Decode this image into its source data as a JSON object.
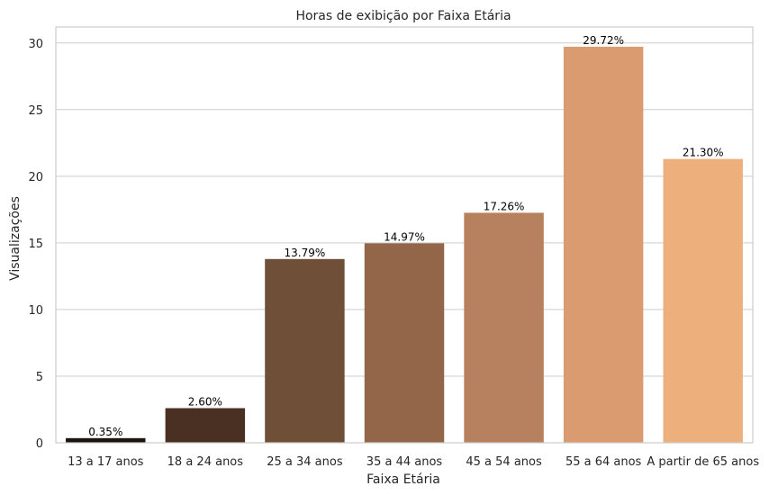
{
  "chart_data": {
    "type": "bar",
    "title": "Horas de exibição por Faixa Etária",
    "xlabel": "Faixa Etária",
    "ylabel": "Visualizações",
    "categories": [
      "13 a 17 anos",
      "18 a 24 anos",
      "25 a 34 anos",
      "35 a 44 anos",
      "45 a 54 anos",
      "55 a 64 anos",
      "A partir de 65 anos"
    ],
    "values": [
      0.35,
      2.6,
      13.79,
      14.97,
      17.26,
      29.72,
      21.3
    ],
    "data_labels": [
      "0.35%",
      "2.60%",
      "13.79%",
      "14.97%",
      "17.26%",
      "29.72%",
      "21.30%"
    ],
    "colors": [
      "#1e140f",
      "#4a3022",
      "#704f39",
      "#936649",
      "#b7805e",
      "#db9b71",
      "#edb07d"
    ],
    "yticks": [
      0,
      5,
      10,
      15,
      20,
      25,
      30
    ],
    "ylim": [
      0,
      31.2
    ],
    "grid": "y",
    "gridColor": "#cccccc",
    "frameColor": "#cccccc"
  }
}
